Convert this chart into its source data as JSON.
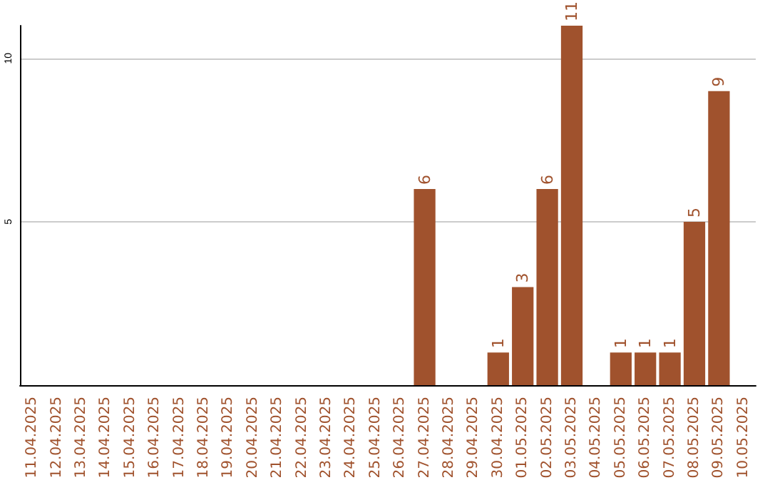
{
  "chart_data": {
    "type": "bar",
    "categories": [
      "11.04.2025",
      "12.04.2025",
      "13.04.2025",
      "14.04.2025",
      "15.04.2025",
      "16.04.2025",
      "17.04.2025",
      "18.04.2025",
      "19.04.2025",
      "20.04.2025",
      "21.04.2025",
      "22.04.2025",
      "23.04.2025",
      "24.04.2025",
      "25.04.2025",
      "26.04.2025",
      "27.04.2025",
      "28.04.2025",
      "29.04.2025",
      "30.04.2025",
      "01.05.2025",
      "02.05.2025",
      "03.05.2025",
      "04.05.2025",
      "05.05.2025",
      "06.05.2025",
      "07.05.2025",
      "08.05.2025",
      "09.05.2025",
      "10.05.2025"
    ],
    "values": [
      0,
      0,
      0,
      0,
      0,
      0,
      0,
      0,
      0,
      0,
      0,
      0,
      0,
      0,
      0,
      0,
      6,
      0,
      0,
      1,
      3,
      6,
      11,
      0,
      1,
      1,
      1,
      5,
      9,
      0
    ],
    "value_labels": [
      null,
      null,
      null,
      null,
      null,
      null,
      null,
      null,
      null,
      null,
      null,
      null,
      null,
      null,
      null,
      null,
      "6",
      null,
      null,
      "1",
      "3",
      "6",
      "11",
      null,
      "1",
      "1",
      "1",
      "5",
      "9",
      null
    ],
    "color": "#a0522d",
    "ylim": [
      0,
      11
    ],
    "yticks": [
      5,
      10
    ],
    "grid": "y"
  }
}
